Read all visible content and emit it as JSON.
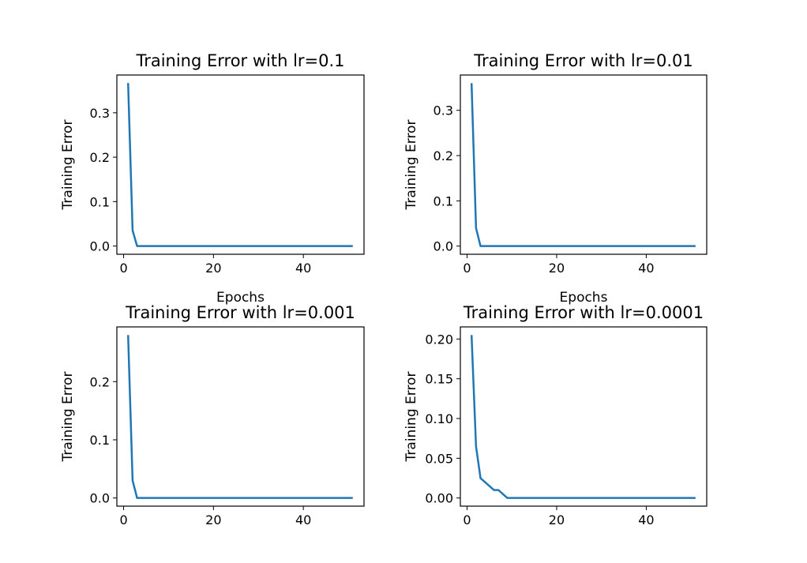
{
  "chart_data": [
    {
      "type": "line",
      "title": "Training Error with lr=0.1",
      "xlabel": "Epochs",
      "ylabel": "Training Error",
      "xlim": [
        -1.5,
        53.5
      ],
      "ylim": [
        -0.0185,
        0.385
      ],
      "xticks": [
        0,
        20,
        40
      ],
      "yticks": [
        0.0,
        0.1,
        0.2,
        0.3
      ],
      "ytick_labels": [
        "0.0",
        "0.1",
        "0.2",
        "0.3"
      ],
      "grid": false,
      "series": [
        {
          "color": "#1f77b4",
          "x": [
            1,
            2,
            3,
            4,
            5,
            6,
            7,
            8,
            9,
            10,
            11,
            12,
            13,
            14,
            15,
            16,
            17,
            18,
            19,
            20,
            21,
            22,
            23,
            24,
            25,
            26,
            27,
            28,
            29,
            30,
            31,
            32,
            33,
            34,
            35,
            36,
            37,
            38,
            39,
            40,
            41,
            42,
            43,
            44,
            45,
            46,
            47,
            48,
            49,
            50,
            51
          ],
          "y": [
            0.367,
            0.035,
            0,
            0,
            0,
            0,
            0,
            0,
            0,
            0,
            0,
            0,
            0,
            0,
            0,
            0,
            0,
            0,
            0,
            0,
            0,
            0,
            0,
            0,
            0,
            0,
            0,
            0,
            0,
            0,
            0,
            0,
            0,
            0,
            0,
            0,
            0,
            0,
            0,
            0,
            0,
            0,
            0,
            0,
            0,
            0,
            0,
            0,
            0,
            0,
            0
          ]
        }
      ]
    },
    {
      "type": "line",
      "title": "Training Error with lr=0.01",
      "xlabel": "Epochs",
      "ylabel": "Training Error",
      "xlim": [
        -1.5,
        53.5
      ],
      "ylim": [
        -0.018,
        0.378
      ],
      "xticks": [
        0,
        20,
        40
      ],
      "yticks": [
        0.0,
        0.1,
        0.2,
        0.3
      ],
      "ytick_labels": [
        "0.0",
        "0.1",
        "0.2",
        "0.3"
      ],
      "grid": false,
      "series": [
        {
          "color": "#1f77b4",
          "x": [
            1,
            2,
            3,
            4,
            5,
            6,
            7,
            8,
            9,
            10,
            11,
            12,
            13,
            14,
            15,
            16,
            17,
            18,
            19,
            20,
            21,
            22,
            23,
            24,
            25,
            26,
            27,
            28,
            29,
            30,
            31,
            32,
            33,
            34,
            35,
            36,
            37,
            38,
            39,
            40,
            41,
            42,
            43,
            44,
            45,
            46,
            47,
            48,
            49,
            50,
            51
          ],
          "y": [
            0.36,
            0.04,
            0,
            0,
            0,
            0,
            0,
            0,
            0,
            0,
            0,
            0,
            0,
            0,
            0,
            0,
            0,
            0,
            0,
            0,
            0,
            0,
            0,
            0,
            0,
            0,
            0,
            0,
            0,
            0,
            0,
            0,
            0,
            0,
            0,
            0,
            0,
            0,
            0,
            0,
            0,
            0,
            0,
            0,
            0,
            0,
            0,
            0,
            0,
            0,
            0
          ]
        }
      ]
    },
    {
      "type": "line",
      "title": "Training Error with lr=0.001",
      "xlabel": "",
      "ylabel": "Training Error",
      "xlim": [
        -1.5,
        53.5
      ],
      "ylim": [
        -0.014,
        0.294
      ],
      "xticks": [
        0,
        20,
        40
      ],
      "yticks": [
        0.0,
        0.1,
        0.2
      ],
      "ytick_labels": [
        "0.0",
        "0.1",
        "0.2"
      ],
      "grid": false,
      "series": [
        {
          "color": "#1f77b4",
          "x": [
            1,
            2,
            3,
            4,
            5,
            6,
            7,
            8,
            9,
            10,
            11,
            12,
            13,
            14,
            15,
            16,
            17,
            18,
            19,
            20,
            21,
            22,
            23,
            24,
            25,
            26,
            27,
            28,
            29,
            30,
            31,
            32,
            33,
            34,
            35,
            36,
            37,
            38,
            39,
            40,
            41,
            42,
            43,
            44,
            45,
            46,
            47,
            48,
            49,
            50,
            51
          ],
          "y": [
            0.28,
            0.03,
            0,
            0,
            0,
            0,
            0,
            0,
            0,
            0,
            0,
            0,
            0,
            0,
            0,
            0,
            0,
            0,
            0,
            0,
            0,
            0,
            0,
            0,
            0,
            0,
            0,
            0,
            0,
            0,
            0,
            0,
            0,
            0,
            0,
            0,
            0,
            0,
            0,
            0,
            0,
            0,
            0,
            0,
            0,
            0,
            0,
            0,
            0,
            0,
            0
          ]
        }
      ]
    },
    {
      "type": "line",
      "title": "Training Error with lr=0.0001",
      "xlabel": "",
      "ylabel": "Training Error",
      "xlim": [
        -1.5,
        53.5
      ],
      "ylim": [
        -0.01025,
        0.21525
      ],
      "xticks": [
        0,
        20,
        40
      ],
      "yticks": [
        0.0,
        0.05,
        0.1,
        0.15,
        0.2
      ],
      "ytick_labels": [
        "0.00",
        "0.05",
        "0.10",
        "0.15",
        "0.20"
      ],
      "grid": false,
      "series": [
        {
          "color": "#1f77b4",
          "x": [
            1,
            2,
            3,
            4,
            5,
            6,
            7,
            8,
            9,
            10,
            11,
            12,
            13,
            14,
            15,
            16,
            17,
            18,
            19,
            20,
            21,
            22,
            23,
            24,
            25,
            26,
            27,
            28,
            29,
            30,
            31,
            32,
            33,
            34,
            35,
            36,
            37,
            38,
            39,
            40,
            41,
            42,
            43,
            44,
            45,
            46,
            47,
            48,
            49,
            50,
            51
          ],
          "y": [
            0.205,
            0.065,
            0.025,
            0.02,
            0.015,
            0.01,
            0.01,
            0.005,
            0,
            0,
            0,
            0,
            0,
            0,
            0,
            0,
            0,
            0,
            0,
            0,
            0,
            0,
            0,
            0,
            0,
            0,
            0,
            0,
            0,
            0,
            0,
            0,
            0,
            0,
            0,
            0,
            0,
            0,
            0,
            0,
            0,
            0,
            0,
            0,
            0,
            0,
            0,
            0,
            0,
            0,
            0
          ]
        }
      ]
    }
  ]
}
